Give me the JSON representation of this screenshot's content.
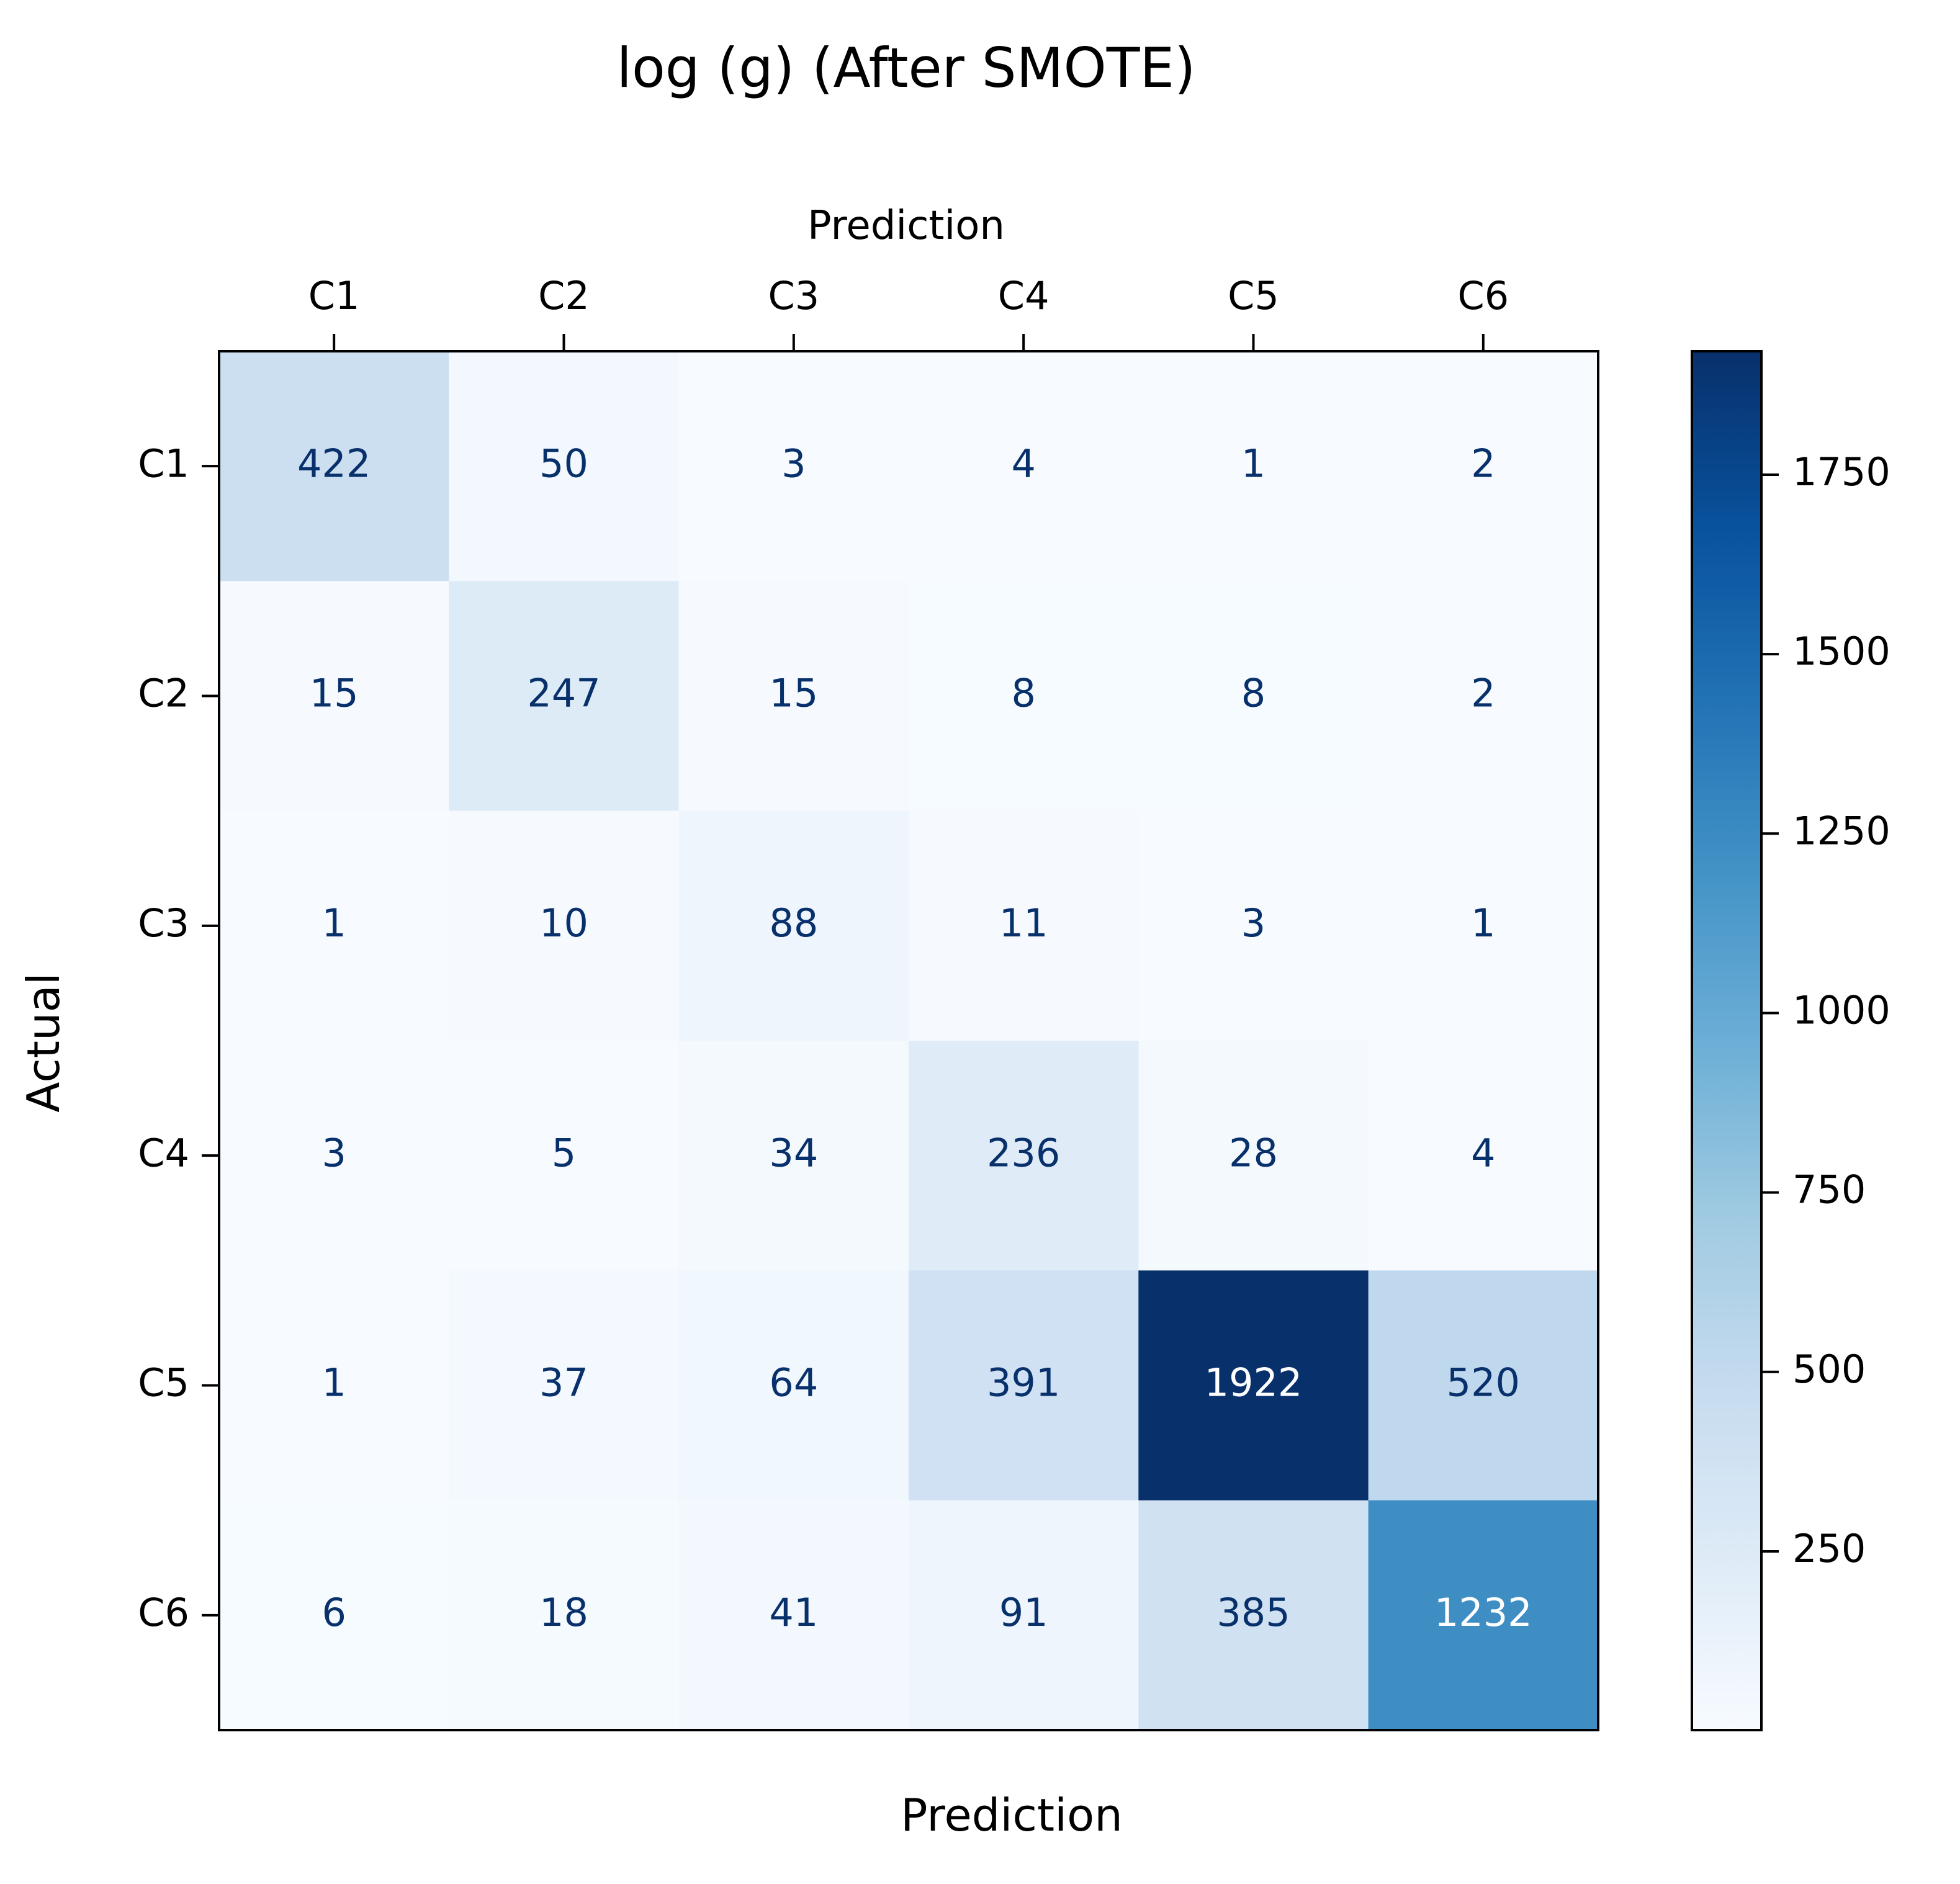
{
  "chart_data": {
    "type": "heatmap",
    "title": "log (g) (After SMOTE)",
    "xlabel_top": "Prediction",
    "xlabel_bottom": "Prediction",
    "ylabel": "Actual",
    "x_categories": [
      "C1",
      "C2",
      "C3",
      "C4",
      "C5",
      "C6"
    ],
    "y_categories": [
      "C1",
      "C2",
      "C3",
      "C4",
      "C5",
      "C6"
    ],
    "values": [
      [
        422,
        50,
        3,
        4,
        1,
        2
      ],
      [
        15,
        247,
        15,
        8,
        8,
        2
      ],
      [
        1,
        10,
        88,
        11,
        3,
        1
      ],
      [
        3,
        5,
        34,
        236,
        28,
        4
      ],
      [
        1,
        37,
        64,
        391,
        1922,
        520
      ],
      [
        6,
        18,
        41,
        91,
        385,
        1232
      ]
    ],
    "colorbar": {
      "colormap": "Blues",
      "vmin": 1,
      "vmax": 1922,
      "ticks": [
        250,
        500,
        750,
        1000,
        1250,
        1500,
        1750
      ]
    },
    "colors": {
      "dark_text": "#08306b",
      "light_text": "#ffffff"
    }
  }
}
